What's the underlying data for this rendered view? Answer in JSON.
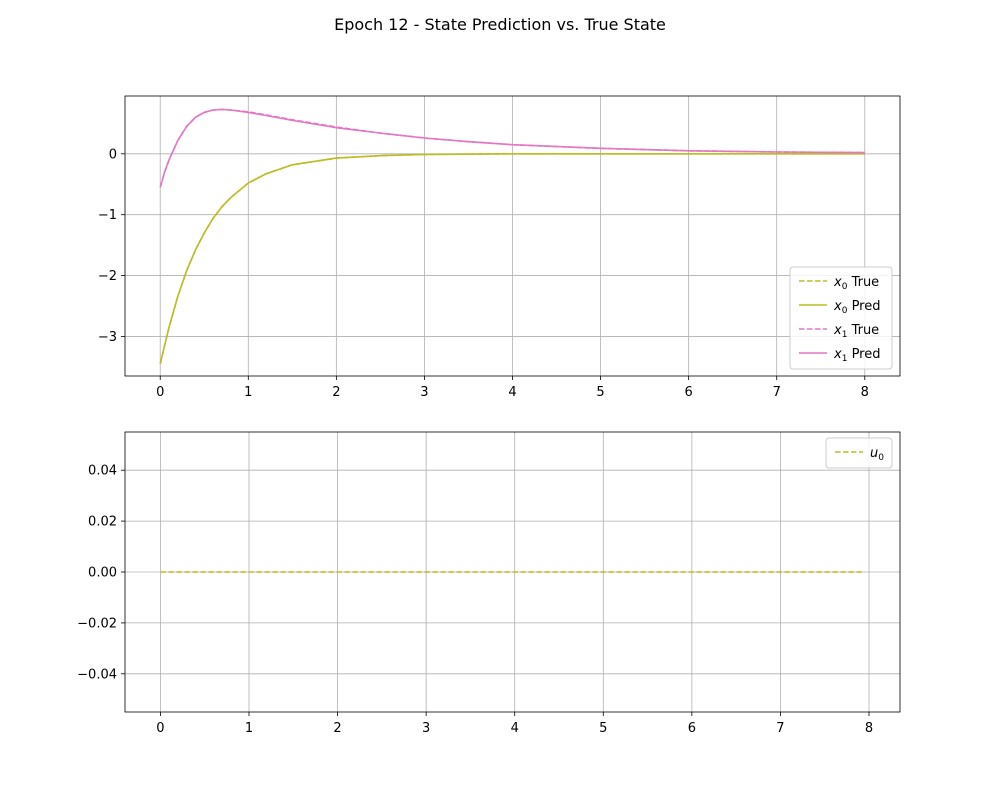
{
  "figure": {
    "title": "Epoch 12 - State Prediction vs. True State"
  },
  "chart_data": [
    {
      "type": "line",
      "title": "",
      "xlabel": "",
      "ylabel": "",
      "xlim": [
        -0.4,
        8.4
      ],
      "ylim": [
        -3.65,
        0.95
      ],
      "xticks": [
        0,
        1,
        2,
        3,
        4,
        5,
        6,
        7,
        8
      ],
      "yticks": [
        -3,
        -2,
        -1,
        0
      ],
      "grid": true,
      "legend_position": "lower-right",
      "legend": [
        {
          "label_base": "x",
          "label_sub": "0",
          "label_rest": "True",
          "color": "#bcbd22",
          "style": "dashed"
        },
        {
          "label_base": "x",
          "label_sub": "0",
          "label_rest": "Pred",
          "color": "#bcbd22",
          "style": "solid"
        },
        {
          "label_base": "x",
          "label_sub": "1",
          "label_rest": "True",
          "color": "#e377c2",
          "style": "dashed"
        },
        {
          "label_base": "x",
          "label_sub": "1",
          "label_rest": "Pred",
          "color": "#e377c2",
          "style": "solid"
        }
      ],
      "series": [
        {
          "name": "x0 True",
          "color": "#bcbd22",
          "style": "dashed",
          "x": [
            0,
            0.1,
            0.2,
            0.3,
            0.4,
            0.5,
            0.6,
            0.7,
            0.8,
            1.0,
            1.2,
            1.5,
            2.0,
            2.5,
            3.0,
            4.0,
            5.0,
            6.0,
            7.0,
            8.0
          ],
          "y": [
            -3.45,
            -2.85,
            -2.34,
            -1.92,
            -1.58,
            -1.3,
            -1.06,
            -0.87,
            -0.72,
            -0.48,
            -0.33,
            -0.18,
            -0.07,
            -0.03,
            -0.01,
            0.0,
            0.0,
            0.0,
            0.0,
            0.0
          ]
        },
        {
          "name": "x0 Pred",
          "color": "#bcbd22",
          "style": "solid",
          "x": [
            0,
            0.1,
            0.2,
            0.3,
            0.4,
            0.5,
            0.6,
            0.7,
            0.8,
            1.0,
            1.2,
            1.5,
            2.0,
            2.5,
            3.0,
            4.0,
            5.0,
            6.0,
            7.0,
            8.0
          ],
          "y": [
            -3.45,
            -2.85,
            -2.34,
            -1.92,
            -1.58,
            -1.3,
            -1.06,
            -0.87,
            -0.72,
            -0.48,
            -0.33,
            -0.18,
            -0.07,
            -0.03,
            -0.01,
            0.0,
            0.0,
            0.0,
            0.0,
            0.0
          ]
        },
        {
          "name": "x1 True",
          "color": "#e377c2",
          "style": "dashed",
          "x": [
            0,
            0.05,
            0.1,
            0.2,
            0.3,
            0.4,
            0.5,
            0.6,
            0.7,
            0.8,
            1.0,
            1.2,
            1.5,
            2.0,
            2.5,
            3.0,
            3.5,
            4.0,
            5.0,
            6.0,
            7.0,
            8.0
          ],
          "y": [
            -0.55,
            -0.3,
            -0.1,
            0.22,
            0.45,
            0.6,
            0.68,
            0.72,
            0.73,
            0.72,
            0.69,
            0.64,
            0.56,
            0.44,
            0.34,
            0.26,
            0.2,
            0.15,
            0.09,
            0.05,
            0.03,
            0.02
          ]
        },
        {
          "name": "x1 Pred",
          "color": "#e377c2",
          "style": "solid",
          "x": [
            0,
            0.05,
            0.1,
            0.2,
            0.3,
            0.4,
            0.5,
            0.6,
            0.7,
            0.8,
            1.0,
            1.2,
            1.5,
            2.0,
            2.5,
            3.0,
            3.5,
            4.0,
            5.0,
            6.0,
            7.0,
            8.0
          ],
          "y": [
            -0.55,
            -0.3,
            -0.1,
            0.22,
            0.45,
            0.6,
            0.68,
            0.72,
            0.73,
            0.72,
            0.68,
            0.63,
            0.55,
            0.43,
            0.34,
            0.26,
            0.2,
            0.15,
            0.09,
            0.05,
            0.03,
            0.02
          ]
        }
      ]
    },
    {
      "type": "line",
      "title": "",
      "xlabel": "",
      "ylabel": "",
      "xlim": [
        -0.4,
        8.35
      ],
      "ylim": [
        -0.055,
        0.055
      ],
      "xticks": [
        0,
        1,
        2,
        3,
        4,
        5,
        6,
        7,
        8
      ],
      "yticks": [
        -0.04,
        -0.02,
        0.0,
        0.02,
        0.04
      ],
      "ytick_labels": [
        "−0.04",
        "−0.02",
        "0.00",
        "0.02",
        "0.04"
      ],
      "grid": true,
      "legend_position": "upper-right",
      "legend": [
        {
          "label_base": "u",
          "label_sub": "0",
          "label_rest": "",
          "color": "#bcbd22",
          "style": "dashed"
        }
      ],
      "series": [
        {
          "name": "u0",
          "color": "#bcbd22",
          "style": "dashed",
          "x": [
            0,
            7.95
          ],
          "y": [
            0.0,
            0.0
          ]
        }
      ]
    }
  ]
}
